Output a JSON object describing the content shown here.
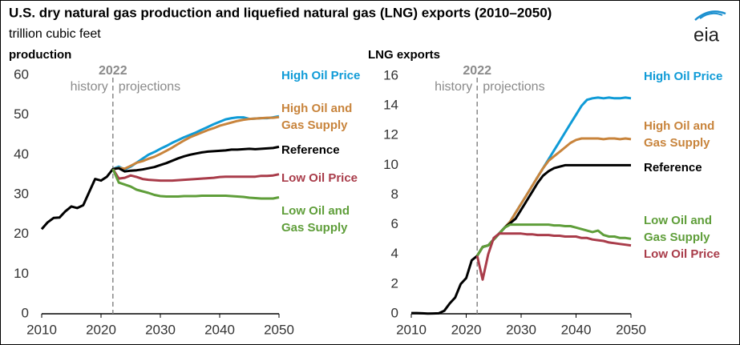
{
  "title": "U.S. dry natural gas production and liquefied natural gas (LNG) exports (2010–2050)",
  "subtitle": "trillion cubic feet",
  "logo": "eia",
  "chart_data": [
    {
      "type": "line",
      "ylabel": "production",
      "x": [
        2010,
        2011,
        2012,
        2013,
        2014,
        2015,
        2016,
        2017,
        2018,
        2019,
        2020,
        2021,
        2022,
        2023,
        2024,
        2025,
        2026,
        2027,
        2028,
        2029,
        2030,
        2031,
        2032,
        2033,
        2034,
        2035,
        2036,
        2037,
        2038,
        2039,
        2040,
        2041,
        2042,
        2043,
        2044,
        2045,
        2046,
        2047,
        2048,
        2049,
        2050
      ],
      "xlim": [
        2010,
        2050
      ],
      "xticks": [
        2010,
        2020,
        2030,
        2040,
        2050
      ],
      "ylim": [
        0,
        60
      ],
      "yticks": [
        0,
        10,
        20,
        30,
        40,
        50,
        60
      ],
      "divider": 2022,
      "divider_label": "2022",
      "left_note": "history",
      "right_note": "projections",
      "series": [
        {
          "name": "High Oil Price",
          "color": "#0f9bd7",
          "values": [
            null,
            null,
            null,
            null,
            null,
            null,
            null,
            null,
            null,
            null,
            null,
            null,
            36.4,
            37,
            36.3,
            37,
            38,
            39,
            40,
            40.7,
            41.5,
            42.2,
            43,
            43.7,
            44.4,
            45,
            45.6,
            46.3,
            47,
            47.7,
            48.3,
            48.9,
            49.2,
            49.4,
            49.4,
            49,
            49.1,
            49.2,
            49.2,
            49.4,
            49.7
          ]
        },
        {
          "name": "High Oil and Gas Supply",
          "color": "#c8843c",
          "values": [
            null,
            null,
            null,
            null,
            null,
            null,
            null,
            null,
            null,
            null,
            null,
            null,
            36.4,
            36.7,
            36.5,
            37.2,
            38,
            38.4,
            39,
            39.5,
            40.2,
            41,
            41.8,
            42.7,
            43.6,
            44.4,
            45,
            45.6,
            46.2,
            46.7,
            47.3,
            47.7,
            48.1,
            48.5,
            48.8,
            49,
            49.1,
            49.2,
            49.3,
            49.3,
            49.5
          ]
        },
        {
          "name": "Reference",
          "color": "#000000",
          "values": [
            21.3,
            23,
            24.1,
            24.2,
            25.8,
            27,
            26.6,
            27.3,
            30.6,
            33.9,
            33.5,
            34.5,
            36.4,
            36.6,
            35.8,
            36,
            36.1,
            36.3,
            36.6,
            36.9,
            37.4,
            37.9,
            38.5,
            39.1,
            39.6,
            40,
            40.3,
            40.6,
            40.8,
            40.9,
            41,
            41.1,
            41.3,
            41.3,
            41.4,
            41.5,
            41.4,
            41.5,
            41.6,
            41.7,
            42
          ]
        },
        {
          "name": "Low Oil Price",
          "color": "#a93c4a",
          "values": [
            null,
            null,
            null,
            null,
            null,
            null,
            null,
            null,
            null,
            null,
            null,
            null,
            36.4,
            34,
            34.2,
            34.8,
            34.4,
            33.9,
            33.7,
            33.6,
            33.5,
            33.5,
            33.5,
            33.6,
            33.7,
            33.8,
            33.9,
            34,
            34.1,
            34.2,
            34.4,
            34.5,
            34.5,
            34.5,
            34.5,
            34.5,
            34.5,
            34.7,
            34.7,
            34.8,
            35.1
          ]
        },
        {
          "name": "Low Oil and Gas Supply",
          "color": "#5f9e3a",
          "values": [
            null,
            null,
            null,
            null,
            null,
            null,
            null,
            null,
            null,
            null,
            null,
            null,
            36.4,
            33,
            32.5,
            32,
            31.2,
            30.8,
            30.4,
            29.9,
            29.6,
            29.5,
            29.5,
            29.5,
            29.6,
            29.6,
            29.6,
            29.7,
            29.7,
            29.7,
            29.7,
            29.7,
            29.6,
            29.5,
            29.4,
            29.2,
            29.1,
            29,
            29,
            29,
            29.3
          ]
        }
      ]
    },
    {
      "type": "line",
      "ylabel": "LNG exports",
      "x": [
        2010,
        2011,
        2012,
        2013,
        2014,
        2015,
        2016,
        2017,
        2018,
        2019,
        2020,
        2021,
        2022,
        2023,
        2024,
        2025,
        2026,
        2027,
        2028,
        2029,
        2030,
        2031,
        2032,
        2033,
        2034,
        2035,
        2036,
        2037,
        2038,
        2039,
        2040,
        2041,
        2042,
        2043,
        2044,
        2045,
        2046,
        2047,
        2048,
        2049,
        2050
      ],
      "xlim": [
        2010,
        2050
      ],
      "xticks": [
        2010,
        2020,
        2030,
        2040,
        2050
      ],
      "ylim": [
        0,
        16
      ],
      "yticks": [
        0,
        2,
        4,
        6,
        8,
        10,
        12,
        14,
        16
      ],
      "divider": 2022,
      "divider_label": "2022",
      "left_note": "history",
      "right_note": "projections",
      "series": [
        {
          "name": "High Oil Price",
          "color": "#0f9bd7",
          "values": [
            null,
            null,
            null,
            null,
            null,
            null,
            null,
            null,
            null,
            null,
            null,
            null,
            3.9,
            4.5,
            4.6,
            5,
            5.4,
            5.8,
            6.2,
            6.8,
            7.4,
            8,
            8.6,
            9.2,
            9.8,
            10.4,
            11,
            11.6,
            12.2,
            12.8,
            13.4,
            14,
            14.4,
            14.5,
            14.55,
            14.5,
            14.55,
            14.5,
            14.5,
            14.55,
            14.5
          ]
        },
        {
          "name": "High Oil and Gas Supply",
          "color": "#c8843c",
          "values": [
            null,
            null,
            null,
            null,
            null,
            null,
            null,
            null,
            null,
            null,
            null,
            null,
            3.9,
            4.5,
            4.6,
            5,
            5.4,
            5.8,
            6.2,
            6.8,
            7.4,
            8,
            8.6,
            9.2,
            9.8,
            10.3,
            10.6,
            10.9,
            11.2,
            11.5,
            11.7,
            11.8,
            11.8,
            11.8,
            11.8,
            11.75,
            11.8,
            11.8,
            11.75,
            11.8,
            11.75
          ]
        },
        {
          "name": "Reference",
          "color": "#000000",
          "values": [
            0.05,
            0.05,
            0.03,
            0.01,
            0.02,
            0.03,
            0.2,
            0.7,
            1.1,
            2,
            2.4,
            3.6,
            3.9,
            4.5,
            4.6,
            5,
            5.4,
            5.8,
            6.1,
            6.4,
            7,
            7.6,
            8.2,
            8.8,
            9.3,
            9.6,
            9.8,
            9.9,
            10,
            10,
            10,
            10,
            10,
            10,
            10,
            10,
            10,
            10,
            10,
            10,
            10
          ]
        },
        {
          "name": "Low Oil and Gas Supply",
          "color": "#5f9e3a",
          "values": [
            null,
            null,
            null,
            null,
            null,
            null,
            null,
            null,
            null,
            null,
            null,
            null,
            3.9,
            4.5,
            4.6,
            5,
            5.4,
            5.8,
            6,
            6,
            6,
            6,
            6,
            6,
            6,
            6,
            5.95,
            5.95,
            5.9,
            5.9,
            5.8,
            5.7,
            5.6,
            5.5,
            5.6,
            5.3,
            5.2,
            5.2,
            5.1,
            5.1,
            5.05
          ]
        },
        {
          "name": "Low Oil Price",
          "color": "#a93c4a",
          "values": [
            null,
            null,
            null,
            null,
            null,
            null,
            null,
            null,
            null,
            null,
            null,
            null,
            3.9,
            2.3,
            4,
            5.1,
            5.4,
            5.4,
            5.4,
            5.4,
            5.4,
            5.35,
            5.35,
            5.3,
            5.3,
            5.3,
            5.25,
            5.25,
            5.2,
            5.2,
            5.2,
            5.1,
            5.1,
            5,
            4.95,
            4.9,
            4.8,
            4.75,
            4.7,
            4.65,
            4.6
          ]
        }
      ]
    }
  ]
}
